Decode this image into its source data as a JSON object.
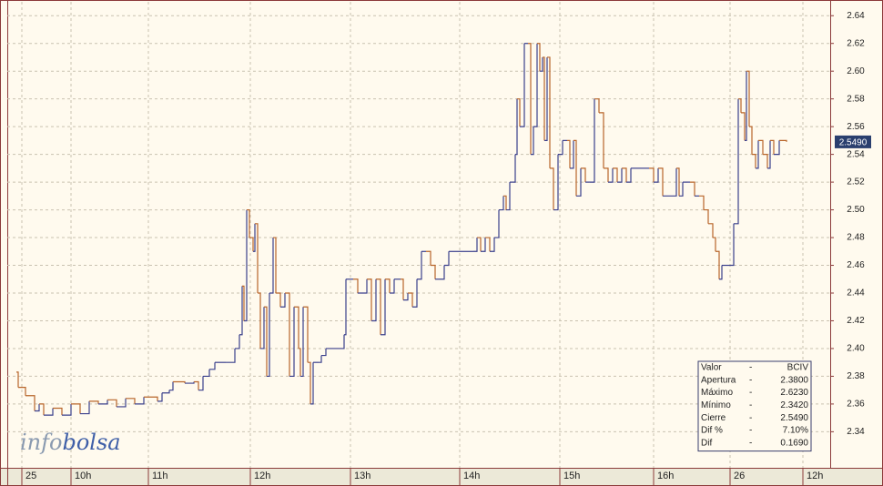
{
  "chart_data": {
    "type": "step-line",
    "x": [
      10,
      12,
      20,
      30,
      35,
      40,
      50,
      60,
      70,
      80,
      90,
      100,
      110,
      120,
      130,
      140,
      150,
      165,
      170,
      178,
      182,
      195,
      205,
      210,
      215,
      222,
      228,
      240,
      250,
      255,
      258,
      260,
      263,
      266,
      270,
      272,
      275,
      278,
      282,
      285,
      288,
      292,
      295,
      300,
      305,
      310,
      315,
      320,
      322,
      325,
      330,
      333,
      336,
      342,
      345,
      350,
      370,
      372,
      380,
      385,
      395,
      400,
      405,
      410,
      415,
      420,
      425,
      432,
      435,
      440,
      445,
      450,
      455,
      460,
      465,
      470,
      475,
      480,
      485,
      495,
      505,
      512,
      516,
      520,
      525,
      530,
      535,
      540,
      545,
      548,
      552,
      556,
      558,
      560,
      563,
      568,
      572,
      575,
      578,
      582,
      585,
      588,
      590,
      593,
      596,
      600,
      605,
      610,
      615,
      618,
      622,
      625,
      630,
      635,
      640,
      645,
      650,
      655,
      660,
      665,
      670,
      675,
      680,
      685,
      690,
      700,
      705,
      710,
      715,
      720,
      735,
      738,
      742,
      750,
      755,
      760,
      765,
      770,
      775,
      778,
      782,
      785,
      790,
      795,
      798,
      803,
      806,
      810,
      812,
      815,
      818,
      822,
      825,
      830,
      835,
      838,
      842,
      848,
      856
    ],
    "values": [
      2.383,
      2.372,
      2.366,
      2.355,
      2.36,
      2.352,
      2.357,
      2.352,
      2.36,
      2.353,
      2.362,
      2.36,
      2.363,
      2.358,
      2.364,
      2.36,
      2.365,
      2.362,
      2.368,
      2.37,
      2.376,
      2.375,
      2.376,
      2.37,
      2.38,
      2.385,
      2.39,
      2.39,
      2.4,
      2.41,
      2.445,
      2.42,
      2.5,
      2.48,
      2.47,
      2.49,
      2.44,
      2.4,
      2.43,
      2.38,
      2.44,
      2.48,
      2.44,
      2.43,
      2.44,
      2.38,
      2.43,
      2.4,
      2.38,
      2.43,
      2.39,
      2.36,
      2.39,
      2.39,
      2.395,
      2.4,
      2.41,
      2.45,
      2.45,
      2.44,
      2.45,
      2.42,
      2.45,
      2.41,
      2.45,
      2.44,
      2.45,
      2.45,
      2.435,
      2.44,
      2.43,
      2.45,
      2.47,
      2.47,
      2.46,
      2.45,
      2.45,
      2.46,
      2.47,
      2.47,
      2.47,
      2.47,
      2.48,
      2.47,
      2.48,
      2.47,
      2.48,
      2.5,
      2.51,
      2.5,
      2.52,
      2.52,
      2.54,
      2.58,
      2.56,
      2.62,
      2.62,
      2.54,
      2.56,
      2.62,
      2.6,
      2.61,
      2.55,
      2.61,
      2.53,
      2.5,
      2.54,
      2.55,
      2.55,
      2.53,
      2.55,
      2.51,
      2.53,
      2.52,
      2.52,
      2.58,
      2.57,
      2.53,
      2.52,
      2.53,
      2.52,
      2.53,
      2.52,
      2.53,
      2.53,
      2.53,
      2.53,
      2.52,
      2.53,
      2.51,
      2.53,
      2.51,
      2.52,
      2.52,
      2.51,
      2.51,
      2.5,
      2.49,
      2.48,
      2.47,
      2.45,
      2.46,
      2.46,
      2.46,
      2.49,
      2.58,
      2.57,
      2.55,
      2.6,
      2.56,
      2.54,
      2.53,
      2.55,
      2.54,
      2.53,
      2.55,
      2.54,
      2.55,
      2.549
    ],
    "up_color": "#3a3f8c",
    "down_color": "#b8652a",
    "xlim": [
      0,
      904
    ],
    "xticks": [
      {
        "value": 16,
        "label": "25"
      },
      {
        "value": 70,
        "label": "10h"
      },
      {
        "value": 155,
        "label": "11h"
      },
      {
        "value": 267,
        "label": "12h"
      },
      {
        "value": 377,
        "label": "13h"
      },
      {
        "value": 497,
        "label": "14h"
      },
      {
        "value": 607,
        "label": "15h"
      },
      {
        "value": 710,
        "label": "16h"
      },
      {
        "value": 794,
        "label": "26"
      },
      {
        "value": 874,
        "label": "12h"
      }
    ],
    "ylim": [
      2.314,
      2.65
    ],
    "yticks": [
      2.34,
      2.36,
      2.38,
      {
        "value": 2.4,
        "label": "2.40"
      },
      2.42,
      2.44,
      2.46,
      2.48,
      {
        "value": 2.5,
        "label": "2.50"
      },
      2.52,
      2.54,
      2.56,
      2.58,
      {
        "value": 2.6,
        "label": "2.60"
      },
      2.62,
      2.64
    ],
    "grid": true,
    "last_price": {
      "value": 2.549,
      "label": "2.5490"
    }
  },
  "logo": {
    "part1": "info",
    "part2": "bolsa"
  },
  "stats": {
    "rows": [
      [
        "Valor",
        "-",
        "BCIV"
      ],
      [
        "Apertura",
        "-",
        "2.3800"
      ],
      [
        "Máximo",
        "-",
        "2.6230"
      ],
      [
        "Mínimo",
        "-",
        "2.3420"
      ],
      [
        "Cierre",
        "-",
        "2.5490"
      ],
      [
        "Dif %",
        "-",
        "7.10%"
      ],
      [
        "Dif",
        "-",
        "0.1690"
      ]
    ]
  }
}
